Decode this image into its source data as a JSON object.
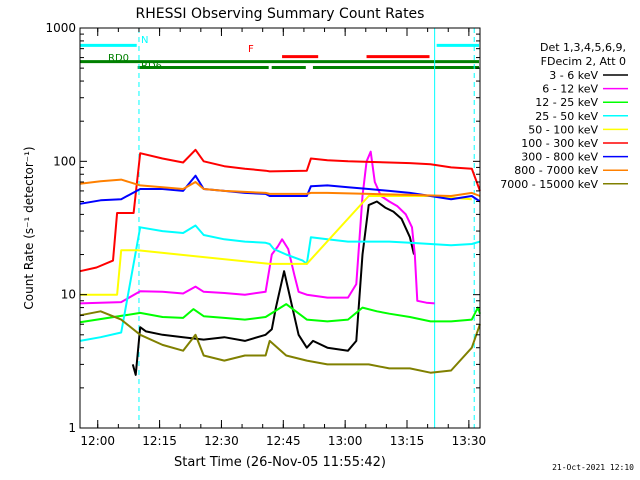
{
  "chart_data": {
    "type": "line",
    "title": "RHESSI Observing Summary Count Rates",
    "xlabel": "Start Time (26-Nov-05 11:55:42)",
    "ylabel": "Count Rate (s⁻¹ detector⁻¹)",
    "yscale": "log",
    "ylim": [
      1,
      1000
    ],
    "xlim_minutes_after_start": [
      0,
      97
    ],
    "x_ticks": [
      "12:00",
      "12:15",
      "12:30",
      "12:45",
      "13:00",
      "13:15",
      "13:30"
    ],
    "y_ticks": [
      "1",
      "10",
      "100",
      "1000"
    ],
    "legend_header": [
      "Det 1,3,4,5,6,9,",
      "FDecim 2, Att 0"
    ],
    "legend_placement": "right",
    "flag_labels": {
      "n": "N",
      "rd0": "RD0",
      "rd6": "RD6",
      "f": "F"
    },
    "flag_bars": [
      {
        "flag": "N",
        "color": "#00ffff",
        "y": 740,
        "intervals": [
          [
            0,
            14
          ],
          [
            86,
            97
          ]
        ]
      },
      {
        "flag": "F",
        "color": "#ff0000",
        "y": 610,
        "intervals": [
          [
            49,
            58
          ],
          [
            69,
            85
          ]
        ]
      },
      {
        "flag": "RD0",
        "color": "#008000",
        "y": 560,
        "intervals": [
          [
            0,
            97
          ]
        ]
      },
      {
        "flag": "RD6",
        "color": "#008000",
        "y": 505,
        "intervals": [
          [
            14,
            46
          ],
          [
            46,
            55
          ],
          [
            56,
            97
          ]
        ]
      }
    ],
    "vertical_lines": [
      {
        "x": 14.3,
        "color": "#00ffff",
        "style": "dashed"
      },
      {
        "x": 86.0,
        "color": "#00ffff",
        "style": "solid"
      },
      {
        "x": 95.6,
        "color": "#00ffff",
        "style": "dashed"
      }
    ],
    "series": [
      {
        "name": "3 - 6 keV",
        "color": "#000000",
        "points": [
          [
            12.8,
            3.0
          ],
          [
            13.5,
            2.5
          ],
          [
            14.6,
            5.7
          ],
          [
            16,
            5.3
          ],
          [
            20,
            5
          ],
          [
            25,
            4.8
          ],
          [
            30,
            4.6
          ],
          [
            35,
            4.8
          ],
          [
            40,
            4.5
          ],
          [
            45,
            5
          ],
          [
            46.5,
            5.5
          ],
          [
            47.5,
            8
          ],
          [
            49.5,
            15
          ],
          [
            50.5,
            11
          ],
          [
            51.5,
            8
          ],
          [
            53,
            5
          ],
          [
            55,
            4
          ],
          [
            56.5,
            4.5
          ],
          [
            60,
            4
          ],
          [
            65,
            3.8
          ],
          [
            67,
            4.5
          ],
          [
            68.5,
            20
          ],
          [
            70,
            47
          ],
          [
            72,
            50
          ],
          [
            74,
            45
          ],
          [
            76,
            42
          ],
          [
            78,
            37
          ],
          [
            80,
            27
          ],
          [
            81,
            20
          ]
        ]
      },
      {
        "name": "6 - 12 keV",
        "color": "#ff00ff",
        "points": [
          [
            0,
            8.6
          ],
          [
            5,
            8.7
          ],
          [
            10,
            8.8
          ],
          [
            14.6,
            10.6
          ],
          [
            20,
            10.5
          ],
          [
            25,
            10.2
          ],
          [
            28,
            11.5
          ],
          [
            30,
            10.5
          ],
          [
            35,
            10.3
          ],
          [
            40,
            10
          ],
          [
            45,
            10.5
          ],
          [
            46.5,
            20
          ],
          [
            48,
            23
          ],
          [
            49,
            26
          ],
          [
            50.5,
            22
          ],
          [
            52,
            14
          ],
          [
            53,
            10.5
          ],
          [
            55,
            10
          ],
          [
            60,
            9.5
          ],
          [
            65,
            9.5
          ],
          [
            67,
            12
          ],
          [
            68.5,
            55
          ],
          [
            69.5,
            100
          ],
          [
            70.5,
            118
          ],
          [
            71.5,
            70
          ],
          [
            73,
            55
          ],
          [
            75,
            50
          ],
          [
            77,
            46
          ],
          [
            79,
            40
          ],
          [
            80.5,
            32
          ],
          [
            81.2,
            20
          ],
          [
            81.8,
            9
          ],
          [
            84,
            8.7
          ],
          [
            86,
            8.6
          ]
        ]
      },
      {
        "name": "12 - 25 keV",
        "color": "#00ff00",
        "points": [
          [
            0,
            6.2
          ],
          [
            14.6,
            7.3
          ],
          [
            20,
            6.8
          ],
          [
            25,
            6.7
          ],
          [
            27.5,
            7.8
          ],
          [
            30,
            6.9
          ],
          [
            35,
            6.7
          ],
          [
            40,
            6.5
          ],
          [
            45,
            6.8
          ],
          [
            50,
            8.5
          ],
          [
            55,
            6.5
          ],
          [
            60,
            6.3
          ],
          [
            65,
            6.5
          ],
          [
            68.5,
            8
          ],
          [
            72,
            7.5
          ],
          [
            75,
            7.2
          ],
          [
            80,
            6.8
          ],
          [
            85,
            6.3
          ],
          [
            90,
            6.3
          ],
          [
            95,
            6.5
          ],
          [
            96.5,
            8
          ],
          [
            97,
            7.2
          ]
        ]
      },
      {
        "name": "25 - 50 keV",
        "color": "#00ffff",
        "points": [
          [
            0,
            4.5
          ],
          [
            5,
            4.8
          ],
          [
            10,
            5.2
          ],
          [
            14.6,
            32
          ],
          [
            20,
            30
          ],
          [
            25,
            29
          ],
          [
            28,
            33
          ],
          [
            30,
            28
          ],
          [
            35,
            26
          ],
          [
            40,
            25
          ],
          [
            45,
            24.5
          ],
          [
            46,
            24
          ],
          [
            47,
            22
          ],
          [
            50,
            20
          ],
          [
            54,
            18
          ],
          [
            55,
            17
          ],
          [
            56,
            27
          ],
          [
            60,
            26
          ],
          [
            65,
            25
          ],
          [
            70,
            25
          ],
          [
            75,
            25
          ],
          [
            80,
            24.5
          ],
          [
            85,
            24
          ],
          [
            90,
            23.5
          ],
          [
            95,
            24
          ],
          [
            97,
            25
          ]
        ]
      },
      {
        "name": "50 - 100 keV",
        "color": "#ffff00",
        "points": [
          [
            0,
            10
          ],
          [
            9,
            10
          ],
          [
            10,
            21.5
          ],
          [
            14,
            21.5
          ],
          [
            46,
            17
          ],
          [
            55,
            17
          ],
          [
            70,
            55
          ],
          [
            80,
            55
          ],
          [
            85,
            55
          ],
          [
            95,
            52
          ]
        ]
      },
      {
        "name": "100 - 300 keV",
        "color": "#ff0000",
        "points": [
          [
            0,
            15
          ],
          [
            4,
            16
          ],
          [
            8,
            18
          ],
          [
            9,
            41
          ],
          [
            13,
            41
          ],
          [
            14.6,
            115
          ],
          [
            20,
            105
          ],
          [
            25,
            98
          ],
          [
            28,
            122
          ],
          [
            30,
            100
          ],
          [
            35,
            92
          ],
          [
            40,
            88
          ],
          [
            45,
            85
          ],
          [
            46,
            84
          ],
          [
            55,
            85
          ],
          [
            56,
            105
          ],
          [
            60,
            102
          ],
          [
            65,
            100
          ],
          [
            70,
            99
          ],
          [
            75,
            98
          ],
          [
            80,
            97
          ],
          [
            85,
            95
          ],
          [
            90,
            90
          ],
          [
            95,
            88
          ],
          [
            97,
            60
          ]
        ]
      },
      {
        "name": "300 - 800 keV",
        "color": "#0000ff",
        "points": [
          [
            0,
            48
          ],
          [
            5,
            51
          ],
          [
            10,
            52
          ],
          [
            14.6,
            62
          ],
          [
            20,
            62
          ],
          [
            25,
            60
          ],
          [
            28,
            78
          ],
          [
            30,
            62
          ],
          [
            35,
            60
          ],
          [
            40,
            58
          ],
          [
            45,
            57
          ],
          [
            46,
            55
          ],
          [
            55,
            55
          ],
          [
            56,
            65
          ],
          [
            60,
            66
          ],
          [
            65,
            64
          ],
          [
            70,
            62
          ],
          [
            75,
            60
          ],
          [
            80,
            58
          ],
          [
            85,
            55
          ],
          [
            90,
            52
          ],
          [
            95,
            55
          ],
          [
            97,
            50
          ]
        ]
      },
      {
        "name": "800 - 7000 keV",
        "color": "#ff8000",
        "points": [
          [
            0,
            68
          ],
          [
            5,
            71
          ],
          [
            10,
            73
          ],
          [
            14.6,
            66
          ],
          [
            20,
            64
          ],
          [
            25,
            62
          ],
          [
            28,
            70
          ],
          [
            30,
            62
          ],
          [
            35,
            60
          ],
          [
            40,
            59
          ],
          [
            45,
            58
          ],
          [
            46,
            57
          ],
          [
            55,
            57
          ],
          [
            56,
            58
          ],
          [
            60,
            58
          ],
          [
            70,
            57
          ],
          [
            80,
            56
          ],
          [
            90,
            55
          ],
          [
            95,
            58
          ],
          [
            97,
            55
          ]
        ]
      },
      {
        "name": "7000 - 15000 keV",
        "color": "#808000",
        "points": [
          [
            0,
            7
          ],
          [
            5,
            7.5
          ],
          [
            10,
            6.5
          ],
          [
            14.6,
            5
          ],
          [
            20,
            4.2
          ],
          [
            25,
            3.8
          ],
          [
            28,
            5
          ],
          [
            30,
            3.5
          ],
          [
            35,
            3.2
          ],
          [
            40,
            3.5
          ],
          [
            45,
            3.5
          ],
          [
            46,
            4.5
          ],
          [
            50,
            3.5
          ],
          [
            55,
            3.2
          ],
          [
            60,
            3
          ],
          [
            65,
            3
          ],
          [
            70,
            3
          ],
          [
            75,
            2.8
          ],
          [
            80,
            2.8
          ],
          [
            85,
            2.6
          ],
          [
            90,
            2.7
          ],
          [
            95,
            4
          ],
          [
            97,
            6
          ]
        ]
      }
    ]
  },
  "footer": {
    "timestamp": "21-Oct-2021 12:10"
  }
}
